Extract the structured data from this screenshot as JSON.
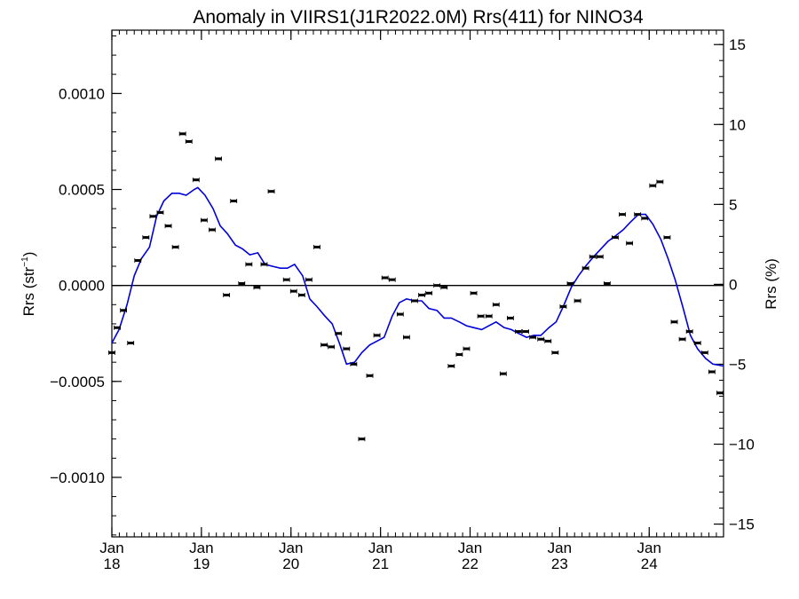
{
  "chart_data": {
    "type": "scatter",
    "title": "Anomaly in VIIRS1(J1R2022.0M) Rrs(411) for NINO34",
    "ylabel_left_main": "Rrs (str",
    "ylabel_left_sup": "−1",
    "ylabel_left_close": ")",
    "ylabel_right": "Rrs (%)",
    "xlim": [
      2018.0,
      2024.83
    ],
    "ylim_left": [
      -0.00131,
      0.00133
    ],
    "ylim_right": [
      -15.8,
      15.9
    ],
    "x_ticks": [
      {
        "x": 2018.0,
        "month": "Jan",
        "year": "18"
      },
      {
        "x": 2019.0,
        "month": "Jan",
        "year": "19"
      },
      {
        "x": 2020.0,
        "month": "Jan",
        "year": "20"
      },
      {
        "x": 2021.0,
        "month": "Jan",
        "year": "21"
      },
      {
        "x": 2022.0,
        "month": "Jan",
        "year": "22"
      },
      {
        "x": 2023.0,
        "month": "Jan",
        "year": "23"
      },
      {
        "x": 2024.0,
        "month": "Jan",
        "year": "24"
      }
    ],
    "y_ticks_left": [
      {
        "v": 0.001,
        "label": "0.0010"
      },
      {
        "v": 0.0005,
        "label": "0.0005"
      },
      {
        "v": 0.0,
        "label": "0.0000"
      },
      {
        "v": -0.0005,
        "label": "−0.0005"
      },
      {
        "v": -0.001,
        "label": "−0.0010"
      }
    ],
    "y_ticks_right": [
      {
        "v": 15,
        "label": "15"
      },
      {
        "v": 10,
        "label": "10"
      },
      {
        "v": 5,
        "label": "5"
      },
      {
        "v": 0,
        "label": "0"
      },
      {
        "v": -5,
        "label": "−5"
      },
      {
        "v": -10,
        "label": "−10"
      },
      {
        "v": -15,
        "label": "−15"
      }
    ],
    "points": [
      [
        2018.0,
        -0.00035
      ],
      [
        2018.06,
        -0.00022
      ],
      [
        2018.13,
        -0.00013
      ],
      [
        2018.21,
        -0.0003
      ],
      [
        2018.29,
        0.00013
      ],
      [
        2018.38,
        0.00025
      ],
      [
        2018.46,
        0.00036
      ],
      [
        2018.54,
        0.00038
      ],
      [
        2018.63,
        0.00031
      ],
      [
        2018.71,
        0.0002
      ],
      [
        2018.79,
        0.00079
      ],
      [
        2018.86,
        0.00075
      ],
      [
        2018.94,
        0.00055
      ],
      [
        2019.03,
        0.00034
      ],
      [
        2019.12,
        0.00029
      ],
      [
        2019.19,
        0.00066
      ],
      [
        2019.28,
        -5e-05
      ],
      [
        2019.36,
        0.00044
      ],
      [
        2019.45,
        1e-05
      ],
      [
        2019.53,
        0.00011
      ],
      [
        2019.62,
        -1e-05
      ],
      [
        2019.7,
        0.00011
      ],
      [
        2019.78,
        0.00049
      ],
      [
        2019.95,
        3e-05
      ],
      [
        2020.03,
        -3e-05
      ],
      [
        2020.12,
        -5e-05
      ],
      [
        2020.2,
        3e-05
      ],
      [
        2020.29,
        0.0002
      ],
      [
        2020.37,
        -0.00031
      ],
      [
        2020.45,
        -0.00032
      ],
      [
        2020.53,
        -0.00025
      ],
      [
        2020.62,
        -0.00033
      ],
      [
        2020.7,
        -0.00041
      ],
      [
        2020.79,
        -0.0008
      ],
      [
        2020.88,
        -0.00047
      ],
      [
        2020.96,
        -0.00026
      ],
      [
        2021.05,
        4e-05
      ],
      [
        2021.13,
        3e-05
      ],
      [
        2021.22,
        -0.00015
      ],
      [
        2021.29,
        -0.00027
      ],
      [
        2021.38,
        -8e-05
      ],
      [
        2021.46,
        -5e-05
      ],
      [
        2021.54,
        -4e-05
      ],
      [
        2021.63,
        0.0
      ],
      [
        2021.71,
        -1e-05
      ],
      [
        2021.79,
        -0.00042
      ],
      [
        2021.88,
        -0.00036
      ],
      [
        2021.96,
        -0.00033
      ],
      [
        2022.04,
        -4e-05
      ],
      [
        2022.12,
        -0.00016
      ],
      [
        2022.21,
        -0.00016
      ],
      [
        2022.29,
        -0.0001
      ],
      [
        2022.37,
        -0.00046
      ],
      [
        2022.45,
        -0.00017
      ],
      [
        2022.54,
        -0.00024
      ],
      [
        2022.62,
        -0.00024
      ],
      [
        2022.7,
        -0.00027
      ],
      [
        2022.79,
        -0.00028
      ],
      [
        2022.87,
        -0.00029
      ],
      [
        2022.95,
        -0.00035
      ],
      [
        2023.04,
        -0.00011
      ],
      [
        2023.12,
        1e-05
      ],
      [
        2023.2,
        -8e-05
      ],
      [
        2023.29,
        9e-05
      ],
      [
        2023.37,
        0.00015
      ],
      [
        2023.45,
        0.00015
      ],
      [
        2023.53,
        1e-05
      ],
      [
        2023.62,
        0.00025
      ],
      [
        2023.7,
        0.00037
      ],
      [
        2023.78,
        0.00022
      ],
      [
        2023.87,
        0.00037
      ],
      [
        2023.95,
        0.00035
      ],
      [
        2024.04,
        0.00052
      ],
      [
        2024.12,
        0.00054
      ],
      [
        2024.2,
        0.00025
      ],
      [
        2024.28,
        -0.00019
      ],
      [
        2024.37,
        -0.00028
      ],
      [
        2024.45,
        -0.00024
      ],
      [
        2024.54,
        -0.0003
      ],
      [
        2024.62,
        -0.00035
      ],
      [
        2024.7,
        -0.00045
      ],
      [
        2024.79,
        -0.00056
      ]
    ],
    "smooth_line": [
      [
        2018.0,
        -0.0003
      ],
      [
        2018.08,
        -0.00023
      ],
      [
        2018.17,
        -0.0001
      ],
      [
        2018.25,
        5e-05
      ],
      [
        2018.33,
        0.00014
      ],
      [
        2018.42,
        0.0002
      ],
      [
        2018.5,
        0.00036
      ],
      [
        2018.58,
        0.00044
      ],
      [
        2018.67,
        0.00048
      ],
      [
        2018.75,
        0.00048
      ],
      [
        2018.83,
        0.00047
      ],
      [
        2018.92,
        0.0005
      ],
      [
        2018.96,
        0.00051
      ],
      [
        2019.04,
        0.00047
      ],
      [
        2019.13,
        0.0004
      ],
      [
        2019.21,
        0.00031
      ],
      [
        2019.29,
        0.00027
      ],
      [
        2019.38,
        0.00021
      ],
      [
        2019.46,
        0.00019
      ],
      [
        2019.54,
        0.00016
      ],
      [
        2019.63,
        0.00017
      ],
      [
        2019.71,
        0.00011
      ],
      [
        2019.79,
        0.0001
      ],
      [
        2019.88,
        9e-05
      ],
      [
        2019.96,
        9e-05
      ],
      [
        2020.04,
        0.00011
      ],
      [
        2020.13,
        5e-05
      ],
      [
        2020.21,
        -7e-05
      ],
      [
        2020.29,
        -0.00011
      ],
      [
        2020.38,
        -0.00016
      ],
      [
        2020.46,
        -0.0002
      ],
      [
        2020.54,
        -0.0003
      ],
      [
        2020.62,
        -0.00041
      ],
      [
        2020.71,
        -0.0004
      ],
      [
        2020.79,
        -0.00035
      ],
      [
        2020.88,
        -0.00031
      ],
      [
        2020.96,
        -0.00029
      ],
      [
        2021.04,
        -0.00027
      ],
      [
        2021.13,
        -0.00016
      ],
      [
        2021.21,
        -9e-05
      ],
      [
        2021.29,
        -7e-05
      ],
      [
        2021.38,
        -8e-05
      ],
      [
        2021.46,
        -8e-05
      ],
      [
        2021.54,
        -0.00012
      ],
      [
        2021.63,
        -0.00013
      ],
      [
        2021.71,
        -0.00017
      ],
      [
        2021.79,
        -0.00017
      ],
      [
        2021.88,
        -0.00019
      ],
      [
        2021.96,
        -0.00021
      ],
      [
        2022.04,
        -0.00022
      ],
      [
        2022.13,
        -0.00023
      ],
      [
        2022.21,
        -0.00021
      ],
      [
        2022.29,
        -0.00019
      ],
      [
        2022.38,
        -0.00022
      ],
      [
        2022.46,
        -0.00023
      ],
      [
        2022.54,
        -0.00025
      ],
      [
        2022.63,
        -0.00027
      ],
      [
        2022.71,
        -0.00026
      ],
      [
        2022.79,
        -0.00026
      ],
      [
        2022.88,
        -0.00022
      ],
      [
        2022.96,
        -0.00019
      ],
      [
        2023.04,
        -0.00011
      ],
      [
        2023.13,
        -1e-05
      ],
      [
        2023.21,
        5e-05
      ],
      [
        2023.29,
        0.0001
      ],
      [
        2023.38,
        0.00015
      ],
      [
        2023.46,
        0.00019
      ],
      [
        2023.54,
        0.00023
      ],
      [
        2023.63,
        0.00026
      ],
      [
        2023.71,
        0.00029
      ],
      [
        2023.79,
        0.00033
      ],
      [
        2023.88,
        0.00037
      ],
      [
        2023.96,
        0.00037
      ],
      [
        2024.04,
        0.00032
      ],
      [
        2024.13,
        0.00024
      ],
      [
        2024.21,
        0.00014
      ],
      [
        2024.29,
        3e-05
      ],
      [
        2024.38,
        -0.00012
      ],
      [
        2024.46,
        -0.00026
      ],
      [
        2024.54,
        -0.00033
      ],
      [
        2024.63,
        -0.00038
      ],
      [
        2024.71,
        -0.00041
      ],
      [
        2024.83,
        -0.00042
      ]
    ],
    "zero_line": true,
    "grid": false,
    "colors": {
      "points": "#000000",
      "line": "#0000dd",
      "axes": "#000000"
    }
  }
}
